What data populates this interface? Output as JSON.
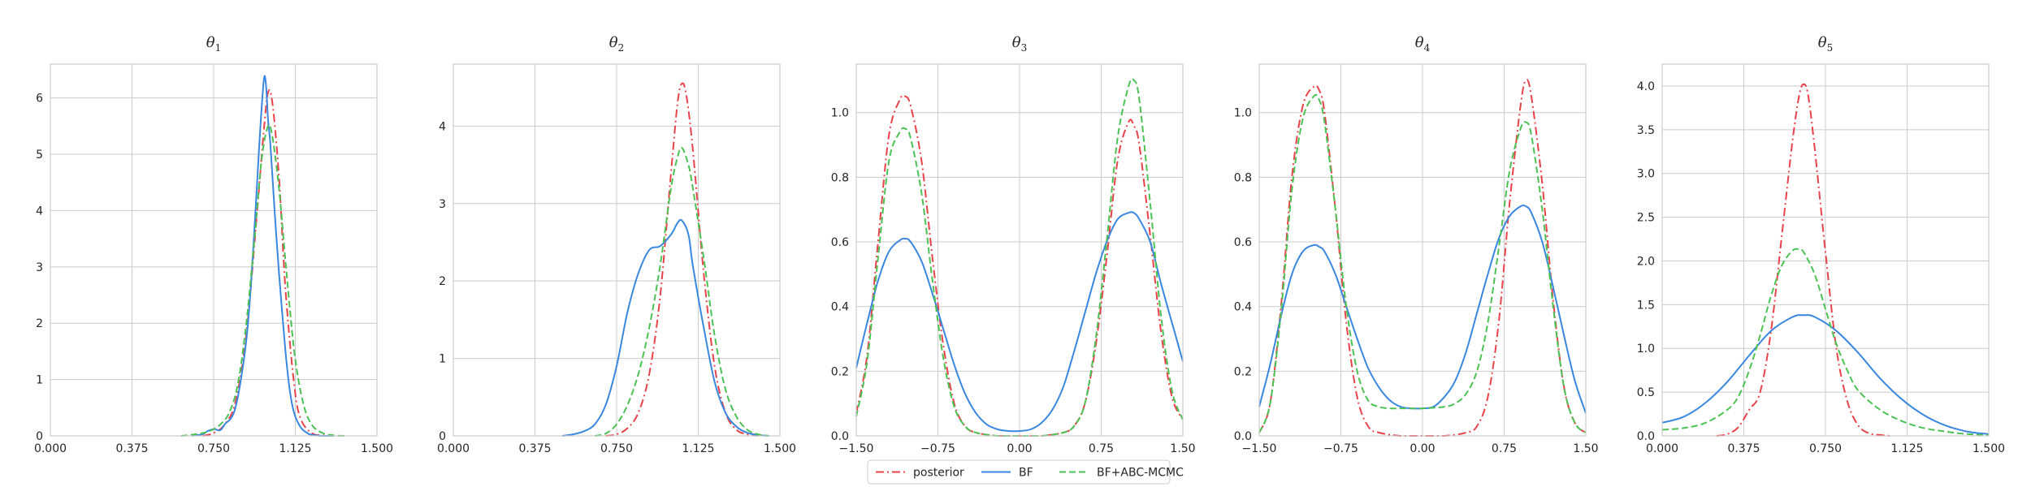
{
  "figure": {
    "legend": {
      "placement": "bottom-center",
      "entries": [
        {
          "label": "posterior",
          "color": "#e8434b",
          "style": "dashdot"
        },
        {
          "label": "BF",
          "color": "#3a87e0",
          "style": "solid"
        },
        {
          "label": "BF+ABC-MCMC",
          "color": "#4cc154",
          "style": "dashed"
        }
      ]
    }
  },
  "chart_data": [
    {
      "type": "line",
      "title": "θ1",
      "title_base": "θ",
      "title_sub": "1",
      "xlim": [
        0.0,
        1.5
      ],
      "ylim": [
        0,
        6.6
      ],
      "xticks": [
        0.0,
        0.375,
        0.75,
        1.125,
        1.5
      ],
      "xtick_labels": [
        "0.000",
        "0.375",
        "0.750",
        "1.125",
        "1.500"
      ],
      "yticks": [
        0,
        1,
        2,
        3,
        4,
        5,
        6
      ],
      "ytick_labels": [
        "0",
        "1",
        "2",
        "3",
        "4",
        "5",
        "6"
      ],
      "grid": true,
      "series": [
        {
          "name": "posterior",
          "x": [
            0.7,
            0.75,
            0.8,
            0.85,
            0.9,
            0.95,
            0.98,
            1.0,
            1.02,
            1.05,
            1.08,
            1.12,
            1.15,
            1.2,
            1.25,
            1.3
          ],
          "y": [
            0.0,
            0.05,
            0.2,
            0.6,
            1.8,
            4.0,
            5.4,
            6.1,
            5.9,
            4.6,
            2.6,
            0.9,
            0.3,
            0.05,
            0.01,
            0.0
          ]
        },
        {
          "name": "BF",
          "x": [
            0.65,
            0.7,
            0.72,
            0.75,
            0.78,
            0.8,
            0.85,
            0.9,
            0.93,
            0.96,
            0.98,
            0.99,
            1.0,
            1.01,
            1.03,
            1.05,
            1.08,
            1.1,
            1.12,
            1.15,
            1.18,
            1.2,
            1.25,
            1.3
          ],
          "y": [
            0.0,
            0.03,
            0.08,
            0.12,
            0.1,
            0.2,
            0.5,
            1.7,
            3.2,
            5.2,
            6.3,
            6.25,
            5.6,
            5.2,
            4.0,
            2.9,
            1.5,
            0.8,
            0.4,
            0.15,
            0.05,
            0.02,
            0.0,
            0.0
          ]
        },
        {
          "name": "BF+ABC-MCMC",
          "x": [
            0.6,
            0.65,
            0.7,
            0.74,
            0.78,
            0.82,
            0.86,
            0.9,
            0.94,
            0.97,
            1.0,
            1.02,
            1.05,
            1.08,
            1.12,
            1.16,
            1.2,
            1.25,
            1.3,
            1.35
          ],
          "y": [
            0.0,
            0.02,
            0.05,
            0.1,
            0.2,
            0.4,
            0.9,
            2.0,
            3.6,
            4.9,
            5.5,
            5.3,
            4.4,
            3.1,
            1.5,
            0.6,
            0.2,
            0.05,
            0.01,
            0.0
          ]
        }
      ]
    },
    {
      "type": "line",
      "title": "θ2",
      "title_base": "θ",
      "title_sub": "2",
      "xlim": [
        0.0,
        1.5
      ],
      "ylim": [
        0,
        4.8
      ],
      "xticks": [
        0.0,
        0.375,
        0.75,
        1.125,
        1.5
      ],
      "xtick_labels": [
        "0.000",
        "0.375",
        "0.750",
        "1.125",
        "1.500"
      ],
      "yticks": [
        0,
        1,
        2,
        3,
        4
      ],
      "ytick_labels": [
        "0",
        "1",
        "2",
        "3",
        "4"
      ],
      "grid": true,
      "series": [
        {
          "name": "posterior",
          "x": [
            0.7,
            0.75,
            0.8,
            0.85,
            0.9,
            0.95,
            1.0,
            1.03,
            1.05,
            1.07,
            1.1,
            1.15,
            1.2,
            1.25,
            1.3,
            1.35,
            1.4
          ],
          "y": [
            0.0,
            0.02,
            0.1,
            0.3,
            0.8,
            1.8,
            3.4,
            4.3,
            4.55,
            4.4,
            3.7,
            2.1,
            0.9,
            0.3,
            0.08,
            0.02,
            0.0
          ]
        },
        {
          "name": "BF",
          "x": [
            0.5,
            0.55,
            0.6,
            0.65,
            0.7,
            0.75,
            0.8,
            0.85,
            0.9,
            0.95,
            1.0,
            1.03,
            1.05,
            1.08,
            1.1,
            1.15,
            1.2,
            1.25,
            1.3,
            1.35,
            1.4,
            1.45
          ],
          "y": [
            0.0,
            0.02,
            0.06,
            0.15,
            0.4,
            0.9,
            1.6,
            2.1,
            2.4,
            2.45,
            2.6,
            2.75,
            2.78,
            2.6,
            2.2,
            1.4,
            0.7,
            0.3,
            0.12,
            0.04,
            0.01,
            0.0
          ]
        },
        {
          "name": "BF+ABC-MCMC",
          "x": [
            0.65,
            0.7,
            0.75,
            0.8,
            0.85,
            0.9,
            0.95,
            1.0,
            1.03,
            1.05,
            1.08,
            1.1,
            1.15,
            1.2,
            1.25,
            1.3,
            1.35,
            1.4,
            1.45
          ],
          "y": [
            0.0,
            0.03,
            0.15,
            0.4,
            0.8,
            1.4,
            2.2,
            3.2,
            3.6,
            3.72,
            3.5,
            3.2,
            2.3,
            1.3,
            0.6,
            0.25,
            0.08,
            0.02,
            0.0
          ]
        }
      ]
    },
    {
      "type": "line",
      "title": "θ3",
      "title_base": "θ",
      "title_sub": "3",
      "xlim": [
        -1.5,
        1.5
      ],
      "ylim": [
        0,
        1.15
      ],
      "xticks": [
        -1.5,
        -0.75,
        0.0,
        0.75,
        1.5
      ],
      "xtick_labels": [
        "−1.50",
        "−0.75",
        "0.00",
        "0.75",
        "1.50"
      ],
      "yticks": [
        0.0,
        0.2,
        0.4,
        0.6,
        0.8,
        1.0
      ],
      "ytick_labels": [
        "0.0",
        "0.2",
        "0.4",
        "0.6",
        "0.8",
        "1.0"
      ],
      "grid": true,
      "series": [
        {
          "name": "posterior",
          "x": [
            -1.5,
            -1.4,
            -1.3,
            -1.2,
            -1.1,
            -1.05,
            -1.0,
            -0.9,
            -0.8,
            -0.7,
            -0.6,
            -0.5,
            -0.4,
            -0.2,
            0.0,
            0.2,
            0.4,
            0.5,
            0.6,
            0.7,
            0.8,
            0.9,
            1.0,
            1.05,
            1.1,
            1.2,
            1.3,
            1.4,
            1.5
          ],
          "y": [
            0.07,
            0.25,
            0.6,
            0.93,
            1.04,
            1.05,
            1.02,
            0.85,
            0.55,
            0.28,
            0.1,
            0.03,
            0.01,
            0.0,
            0.0,
            0.0,
            0.01,
            0.03,
            0.1,
            0.28,
            0.55,
            0.85,
            0.97,
            0.96,
            0.9,
            0.62,
            0.32,
            0.12,
            0.05
          ]
        },
        {
          "name": "BF",
          "x": [
            -1.5,
            -1.4,
            -1.3,
            -1.2,
            -1.1,
            -1.05,
            -1.0,
            -0.9,
            -0.8,
            -0.7,
            -0.6,
            -0.5,
            -0.4,
            -0.3,
            -0.2,
            -0.1,
            0.0,
            0.1,
            0.2,
            0.3,
            0.4,
            0.5,
            0.6,
            0.7,
            0.8,
            0.9,
            1.0,
            1.05,
            1.1,
            1.2,
            1.3,
            1.4,
            1.5
          ],
          "y": [
            0.21,
            0.35,
            0.48,
            0.57,
            0.605,
            0.61,
            0.6,
            0.54,
            0.44,
            0.33,
            0.22,
            0.13,
            0.07,
            0.035,
            0.02,
            0.015,
            0.015,
            0.02,
            0.04,
            0.08,
            0.15,
            0.26,
            0.38,
            0.5,
            0.6,
            0.67,
            0.69,
            0.69,
            0.67,
            0.6,
            0.47,
            0.35,
            0.23
          ]
        },
        {
          "name": "BF+ABC-MCMC",
          "x": [
            -1.5,
            -1.4,
            -1.3,
            -1.2,
            -1.1,
            -1.05,
            -1.0,
            -0.9,
            -0.8,
            -0.7,
            -0.6,
            -0.5,
            -0.4,
            -0.2,
            0.0,
            0.2,
            0.4,
            0.5,
            0.6,
            0.7,
            0.8,
            0.9,
            1.0,
            1.05,
            1.1,
            1.2,
            1.3,
            1.4,
            1.5
          ],
          "y": [
            0.06,
            0.23,
            0.55,
            0.85,
            0.94,
            0.95,
            0.92,
            0.75,
            0.48,
            0.24,
            0.09,
            0.03,
            0.01,
            0.0,
            0.0,
            0.0,
            0.01,
            0.03,
            0.1,
            0.3,
            0.6,
            0.92,
            1.08,
            1.1,
            1.04,
            0.72,
            0.37,
            0.14,
            0.05
          ]
        }
      ]
    },
    {
      "type": "line",
      "title": "θ4",
      "title_base": "θ",
      "title_sub": "4",
      "xlim": [
        -1.5,
        1.5
      ],
      "ylim": [
        0,
        1.15
      ],
      "xticks": [
        -1.5,
        -0.75,
        0.0,
        0.75,
        1.5
      ],
      "xtick_labels": [
        "−1.50",
        "−0.75",
        "0.00",
        "0.75",
        "1.50"
      ],
      "yticks": [
        0.0,
        0.2,
        0.4,
        0.6,
        0.8,
        1.0
      ],
      "ytick_labels": [
        "0.0",
        "0.2",
        "0.4",
        "0.6",
        "0.8",
        "1.0"
      ],
      "grid": true,
      "series": [
        {
          "name": "posterior",
          "x": [
            -1.5,
            -1.4,
            -1.3,
            -1.2,
            -1.1,
            -1.0,
            -0.95,
            -0.9,
            -0.8,
            -0.7,
            -0.6,
            -0.5,
            -0.4,
            -0.2,
            0.0,
            0.2,
            0.4,
            0.5,
            0.6,
            0.7,
            0.8,
            0.9,
            0.95,
            1.0,
            1.1,
            1.2,
            1.3,
            1.4,
            1.5
          ],
          "y": [
            0.01,
            0.1,
            0.4,
            0.8,
            1.02,
            1.08,
            1.07,
            1.0,
            0.7,
            0.35,
            0.12,
            0.03,
            0.01,
            0.0,
            0.0,
            0.0,
            0.01,
            0.03,
            0.12,
            0.35,
            0.72,
            1.02,
            1.1,
            1.05,
            0.78,
            0.42,
            0.15,
            0.04,
            0.01
          ]
        },
        {
          "name": "BF",
          "x": [
            -1.5,
            -1.4,
            -1.3,
            -1.2,
            -1.1,
            -1.0,
            -0.95,
            -0.9,
            -0.8,
            -0.7,
            -0.6,
            -0.5,
            -0.4,
            -0.3,
            -0.2,
            -0.1,
            0.0,
            0.1,
            0.2,
            0.3,
            0.4,
            0.5,
            0.6,
            0.7,
            0.8,
            0.9,
            0.95,
            1.0,
            1.1,
            1.2,
            1.3,
            1.4,
            1.5
          ],
          "y": [
            0.09,
            0.22,
            0.37,
            0.5,
            0.57,
            0.59,
            0.585,
            0.57,
            0.5,
            0.4,
            0.3,
            0.21,
            0.15,
            0.11,
            0.09,
            0.085,
            0.085,
            0.09,
            0.12,
            0.17,
            0.26,
            0.38,
            0.5,
            0.61,
            0.68,
            0.71,
            0.71,
            0.69,
            0.6,
            0.46,
            0.31,
            0.17,
            0.07
          ]
        },
        {
          "name": "BF+ABC-MCMC",
          "x": [
            -1.5,
            -1.4,
            -1.3,
            -1.2,
            -1.1,
            -1.0,
            -0.95,
            -0.9,
            -0.8,
            -0.7,
            -0.6,
            -0.5,
            -0.4,
            -0.3,
            -0.2,
            0.0,
            0.2,
            0.3,
            0.4,
            0.5,
            0.6,
            0.7,
            0.8,
            0.9,
            0.95,
            1.0,
            1.1,
            1.2,
            1.3,
            1.4,
            1.5
          ],
          "y": [
            0.01,
            0.1,
            0.38,
            0.76,
            0.98,
            1.05,
            1.04,
            0.97,
            0.7,
            0.4,
            0.2,
            0.11,
            0.09,
            0.085,
            0.085,
            0.085,
            0.09,
            0.1,
            0.13,
            0.2,
            0.35,
            0.58,
            0.82,
            0.95,
            0.97,
            0.93,
            0.7,
            0.4,
            0.15,
            0.04,
            0.01
          ]
        }
      ]
    },
    {
      "type": "line",
      "title": "θ5",
      "title_base": "θ",
      "title_sub": "5",
      "xlim": [
        0.0,
        1.5
      ],
      "ylim": [
        0,
        4.25
      ],
      "xticks": [
        0.0,
        0.375,
        0.75,
        1.125,
        1.5
      ],
      "xtick_labels": [
        "0.000",
        "0.375",
        "0.750",
        "1.125",
        "1.500"
      ],
      "yticks": [
        0.0,
        0.5,
        1.0,
        1.5,
        2.0,
        2.5,
        3.0,
        3.5,
        4.0
      ],
      "ytick_labels": [
        "0.0",
        "0.5",
        "1.0",
        "1.5",
        "2.0",
        "2.5",
        "3.0",
        "3.5",
        "4.0"
      ],
      "grid": true,
      "series": [
        {
          "name": "posterior",
          "x": [
            0.25,
            0.3,
            0.35,
            0.4,
            0.45,
            0.5,
            0.55,
            0.6,
            0.63,
            0.65,
            0.67,
            0.7,
            0.75,
            0.8,
            0.85,
            0.9,
            0.95,
            1.0,
            1.05
          ],
          "y": [
            0.0,
            0.02,
            0.1,
            0.3,
            0.5,
            1.2,
            2.3,
            3.4,
            3.9,
            4.02,
            3.9,
            3.3,
            2.1,
            1.0,
            0.4,
            0.12,
            0.03,
            0.01,
            0.0
          ]
        },
        {
          "name": "BF",
          "x": [
            0.0,
            0.1,
            0.2,
            0.3,
            0.4,
            0.5,
            0.6,
            0.65,
            0.7,
            0.8,
            0.9,
            1.0,
            1.1,
            1.2,
            1.3,
            1.4,
            1.5
          ],
          "y": [
            0.15,
            0.22,
            0.38,
            0.62,
            0.92,
            1.2,
            1.36,
            1.38,
            1.36,
            1.2,
            0.95,
            0.66,
            0.42,
            0.24,
            0.12,
            0.05,
            0.02
          ]
        },
        {
          "name": "BF+ABC-MCMC",
          "x": [
            0.0,
            0.1,
            0.2,
            0.3,
            0.35,
            0.4,
            0.45,
            0.5,
            0.55,
            0.6,
            0.63,
            0.65,
            0.7,
            0.75,
            0.8,
            0.85,
            0.9,
            1.0,
            1.1,
            1.2,
            1.3,
            1.4,
            1.5
          ],
          "y": [
            0.07,
            0.09,
            0.15,
            0.3,
            0.45,
            0.75,
            1.15,
            1.6,
            1.95,
            2.12,
            2.13,
            2.1,
            1.85,
            1.45,
            1.05,
            0.75,
            0.52,
            0.3,
            0.17,
            0.09,
            0.05,
            0.02,
            0.01
          ]
        }
      ]
    }
  ]
}
